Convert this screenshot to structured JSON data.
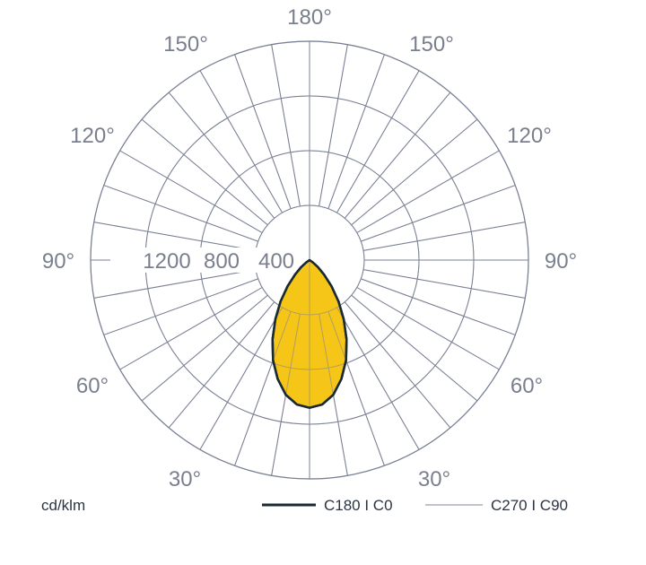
{
  "chart_data": {
    "type": "polar",
    "unit": "cd/klm",
    "radial_ticks": [
      400,
      800,
      1200
    ],
    "radial_tick_labels": [
      "400",
      "800",
      "1200"
    ],
    "r_max": 1600,
    "angle_step_deg": 10,
    "angle_labels": {
      "top": "180°",
      "upper_left": "150°",
      "upper_right": "150°",
      "mid_upper_left": "120°",
      "mid_upper_right": "120°",
      "left": "90°",
      "right": "90°",
      "lower_left": "60°",
      "lower_right": "60°",
      "bottom_left": "30°",
      "bottom_right": "30°"
    },
    "series": [
      {
        "name": "C180 I C0",
        "color": "#f5c518",
        "stroke": "#1a2a33",
        "angles_deg": [
          0,
          5,
          10,
          15,
          20,
          25,
          30,
          35,
          40,
          45,
          50,
          55,
          60
        ],
        "values": [
          1080,
          1060,
          1000,
          900,
          780,
          640,
          500,
          370,
          250,
          150,
          80,
          30,
          0
        ]
      },
      {
        "name": "C270 I C90",
        "color": "#f5c518",
        "stroke": "#9aa0aa",
        "angles_deg": [
          0,
          5,
          10,
          15,
          20,
          25,
          30,
          35,
          40,
          45,
          50,
          55,
          60
        ],
        "values": [
          1080,
          1060,
          1000,
          900,
          780,
          640,
          500,
          370,
          250,
          150,
          80,
          30,
          0
        ]
      }
    ],
    "legend": {
      "unit_label": "cd/klm",
      "entries": [
        "C180 I C0",
        "C270 I C90"
      ]
    },
    "grid": true
  }
}
